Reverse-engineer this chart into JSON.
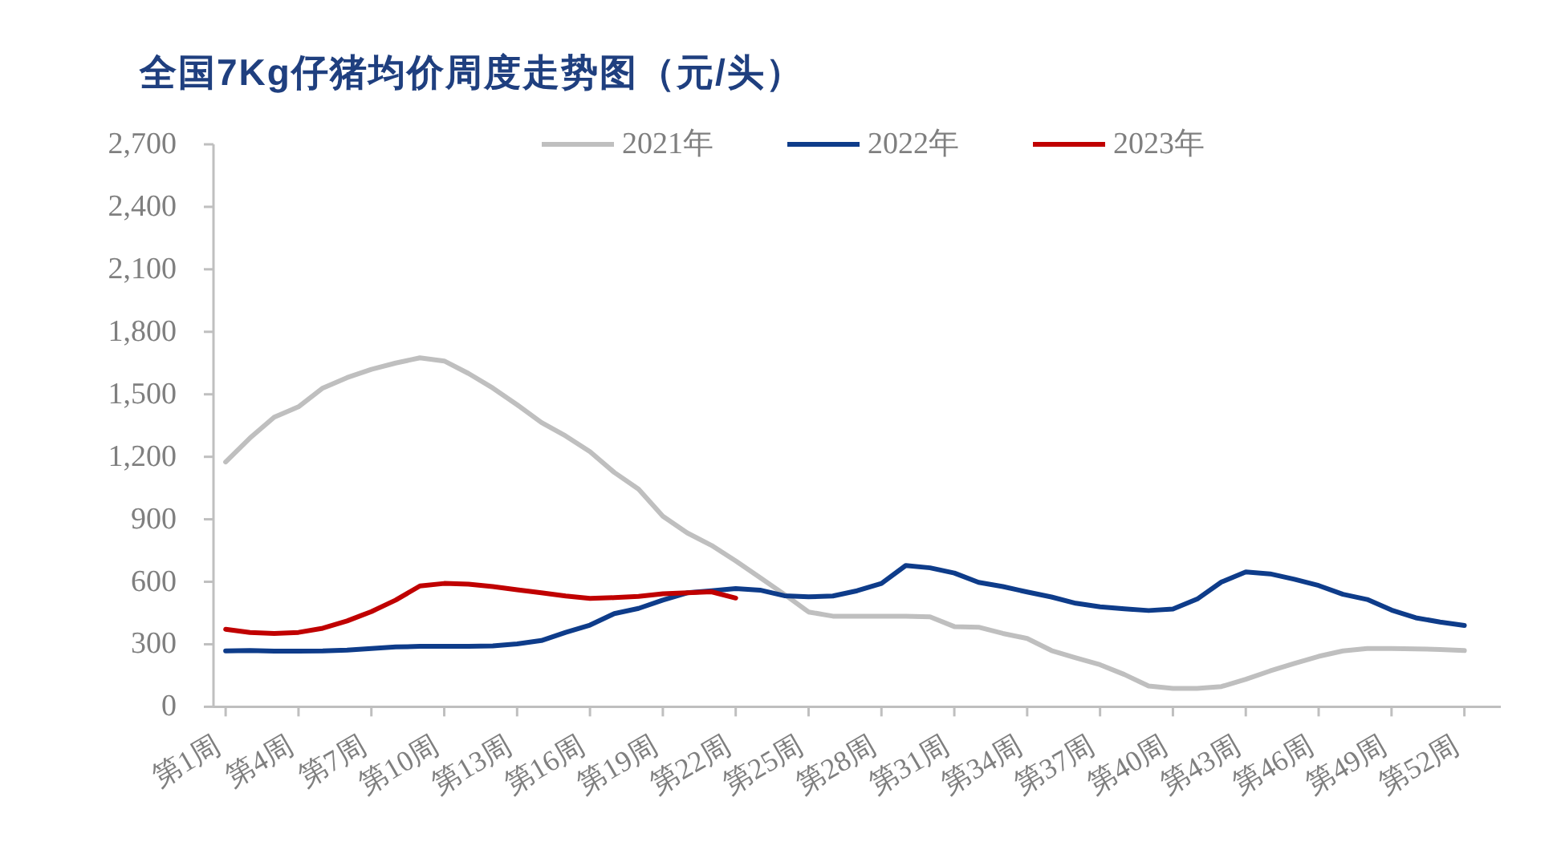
{
  "chart_data": {
    "type": "line",
    "title": "全国7Kg仔猪均价周度走势图（元/头）",
    "categories": [
      "第1周",
      null,
      null,
      "第4周",
      null,
      null,
      "第7周",
      null,
      null,
      "第10周",
      null,
      null,
      "第13周",
      null,
      null,
      "第16周",
      null,
      null,
      "第19周",
      null,
      null,
      "第22周",
      null,
      null,
      "第25周",
      null,
      null,
      "第28周",
      null,
      null,
      "第31周",
      null,
      null,
      "第34周",
      null,
      null,
      "第37周",
      null,
      null,
      "第40周",
      null,
      null,
      "第43周",
      null,
      null,
      "第46周",
      null,
      null,
      "第49周",
      null,
      null,
      "第52周",
      null
    ],
    "series": [
      {
        "name": "2021年",
        "color": "#bfbfbf",
        "values": [
          1175,
          1290,
          1390,
          1440,
          1530,
          1580,
          1620,
          1650,
          1675,
          1660,
          1600,
          1530,
          1450,
          1365,
          1300,
          1225,
          1125,
          1045,
          915,
          835,
          775,
          700,
          620,
          540,
          455,
          435,
          435,
          435,
          435,
          432,
          385,
          382,
          352,
          328,
          270,
          235,
          202,
          155,
          100,
          88,
          88,
          97,
          132,
          172,
          208,
          242,
          268,
          280,
          280,
          278,
          275,
          270,
          null
        ]
      },
      {
        "name": "2022年",
        "color": "#0e3c8a",
        "values": [
          268,
          270,
          267,
          267,
          268,
          272,
          280,
          287,
          290,
          290,
          290,
          292,
          302,
          318,
          357,
          392,
          447,
          472,
          512,
          547,
          557,
          567,
          560,
          533,
          528,
          532,
          557,
          592,
          678,
          667,
          642,
          597,
          577,
          551,
          527,
          497,
          480,
          470,
          462,
          469,
          517,
          599,
          647,
          638,
          612,
          582,
          540,
          515,
          464,
          427,
          407,
          390,
          null
        ]
      },
      {
        "name": "2023年",
        "color": "#c00000",
        "values": [
          372,
          357,
          352,
          357,
          377,
          412,
          457,
          512,
          580,
          592,
          589,
          577,
          562,
          547,
          532,
          520,
          524,
          530,
          542,
          547,
          552,
          522,
          null,
          null,
          null,
          null,
          null,
          null,
          null,
          null,
          null,
          null,
          null,
          null,
          null,
          null,
          null,
          null,
          null,
          null,
          null,
          null,
          null,
          null,
          null,
          null,
          null,
          null,
          null,
          null,
          null,
          null,
          null
        ]
      }
    ],
    "ylim": [
      0,
      2700
    ],
    "yticks": [
      0,
      300,
      600,
      900,
      {
        "value": 1200,
        "label": "1,200"
      },
      {
        "value": 1500,
        "label": "1,500"
      },
      {
        "value": 1800,
        "label": "1,800"
      },
      {
        "value": 2100,
        "label": "2,100"
      },
      {
        "value": 2400,
        "label": "2,400"
      },
      {
        "value": 2700,
        "label": "2,700"
      }
    ],
    "legend": "top"
  }
}
